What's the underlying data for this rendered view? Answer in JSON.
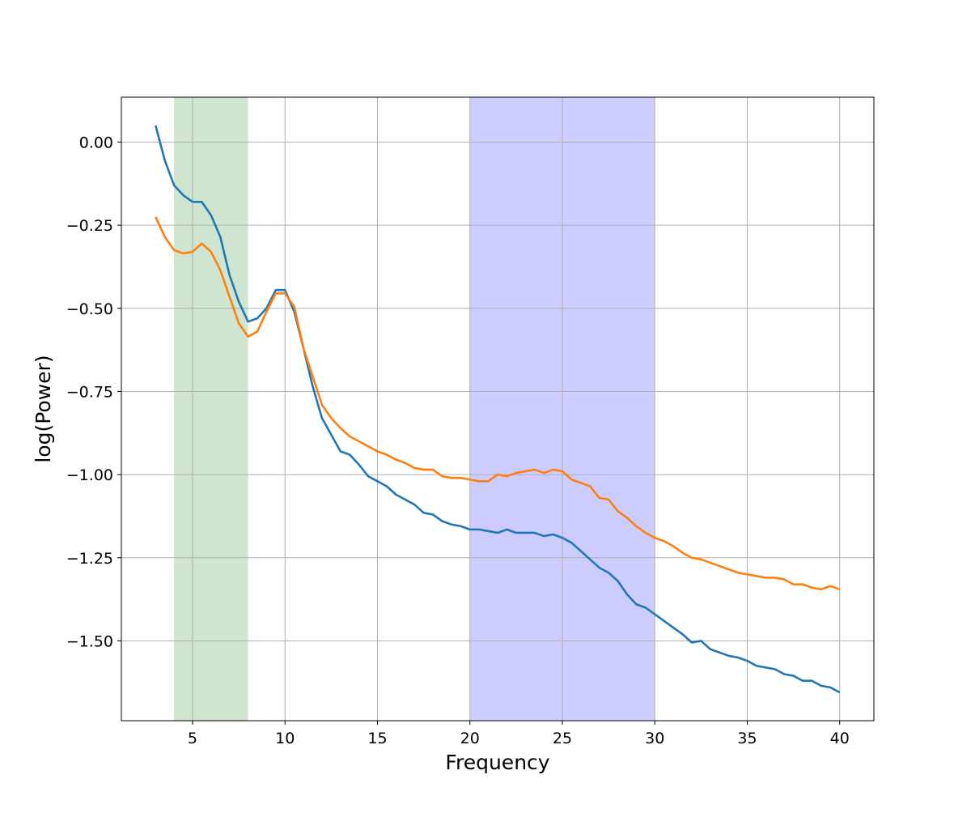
{
  "chart_data": {
    "type": "line",
    "xlabel": "Frequency",
    "ylabel": "log(Power)",
    "x": [
      3,
      3.5,
      4,
      4.5,
      5,
      5.5,
      6,
      6.5,
      7,
      7.5,
      8,
      8.5,
      9,
      9.5,
      10,
      10.5,
      11,
      11.5,
      12,
      12.5,
      13,
      13.5,
      14,
      14.5,
      15,
      15.5,
      16,
      16.5,
      17,
      17.5,
      18,
      18.5,
      19,
      19.5,
      20,
      20.5,
      21,
      21.5,
      22,
      22.5,
      23,
      23.5,
      24,
      24.5,
      25,
      25.5,
      26,
      26.5,
      27,
      27.5,
      28,
      28.5,
      29,
      29.5,
      30,
      30.5,
      31,
      31.5,
      32,
      32.5,
      33,
      33.5,
      34,
      34.5,
      35,
      35.5,
      36,
      36.5,
      37,
      37.5,
      38,
      38.5,
      39,
      39.5,
      40
    ],
    "series": [
      {
        "color": "#1f77b4",
        "values": [
          0.05,
          -0.055,
          -0.13,
          -0.16,
          -0.18,
          -0.18,
          -0.22,
          -0.285,
          -0.4,
          -0.48,
          -0.54,
          -0.53,
          -0.5,
          -0.445,
          -0.445,
          -0.51,
          -0.62,
          -0.735,
          -0.83,
          -0.88,
          -0.93,
          -0.94,
          -0.97,
          -1.005,
          -1.02,
          -1.035,
          -1.06,
          -1.075,
          -1.09,
          -1.115,
          -1.12,
          -1.14,
          -1.15,
          -1.155,
          -1.165,
          -1.165,
          -1.17,
          -1.175,
          -1.165,
          -1.175,
          -1.175,
          -1.175,
          -1.185,
          -1.18,
          -1.19,
          -1.205,
          -1.23,
          -1.255,
          -1.28,
          -1.295,
          -1.32,
          -1.36,
          -1.39,
          -1.4,
          -1.42,
          -1.44,
          -1.46,
          -1.48,
          -1.505,
          -1.5,
          -1.525,
          -1.535,
          -1.545,
          -1.55,
          -1.56,
          -1.575,
          -1.58,
          -1.585,
          -1.6,
          -1.605,
          -1.62,
          -1.62,
          -1.635,
          -1.64,
          -1.655
        ]
      },
      {
        "color": "#ff7f0e",
        "values": [
          -0.225,
          -0.285,
          -0.325,
          -0.335,
          -0.33,
          -0.305,
          -0.33,
          -0.385,
          -0.465,
          -0.545,
          -0.585,
          -0.57,
          -0.51,
          -0.455,
          -0.455,
          -0.495,
          -0.62,
          -0.705,
          -0.79,
          -0.83,
          -0.86,
          -0.885,
          -0.9,
          -0.915,
          -0.93,
          -0.94,
          -0.955,
          -0.965,
          -0.98,
          -0.985,
          -0.985,
          -1.005,
          -1.01,
          -1.01,
          -1.015,
          -1.02,
          -1.02,
          -1.0,
          -1.005,
          -0.995,
          -0.99,
          -0.985,
          -0.995,
          -0.985,
          -0.99,
          -1.015,
          -1.025,
          -1.035,
          -1.07,
          -1.075,
          -1.11,
          -1.13,
          -1.155,
          -1.175,
          -1.19,
          -1.2,
          -1.215,
          -1.235,
          -1.25,
          -1.255,
          -1.265,
          -1.275,
          -1.285,
          -1.295,
          -1.3,
          -1.305,
          -1.31,
          -1.31,
          -1.315,
          -1.33,
          -1.33,
          -1.34,
          -1.345,
          -1.335,
          -1.345
        ]
      }
    ],
    "spans": [
      {
        "range": [
          4,
          8
        ],
        "color": "#cfe5cf"
      },
      {
        "range": [
          20,
          30
        ],
        "color": "#ccccff"
      }
    ],
    "xlim": [
      1.15,
      41.85
    ],
    "ylim": [
      -1.74,
      0.135
    ],
    "xticks": [
      5,
      10,
      15,
      20,
      25,
      30,
      35,
      40
    ],
    "yticks": [
      {
        "value": 0,
        "label": "0.00"
      },
      {
        "value": -0.25,
        "label": "−0.25"
      },
      {
        "value": -0.5,
        "label": "−0.50"
      },
      {
        "value": -0.75,
        "label": "−0.75"
      },
      {
        "value": -1,
        "label": "−1.00"
      },
      {
        "value": -1.25,
        "label": "−1.25"
      },
      {
        "value": -1.5,
        "label": "−1.50"
      }
    ],
    "grid": true
  }
}
